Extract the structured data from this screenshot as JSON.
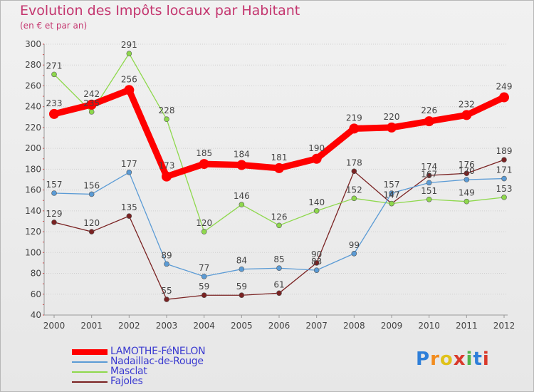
{
  "header": {
    "title": "Evolution des Impôts locaux par Habitant",
    "subtitle": "(en € et par an)"
  },
  "chart_data": {
    "type": "line",
    "title": "Evolution des Impôts locaux par Habitant",
    "subtitle": "(en € et par an)",
    "xlabel": "",
    "ylabel": "",
    "ylim": [
      40,
      300
    ],
    "yticks": [
      40,
      60,
      80,
      100,
      120,
      140,
      160,
      180,
      200,
      220,
      240,
      260,
      280,
      300
    ],
    "grid": true,
    "legend_position": "bottom-left",
    "categories": [
      "2000",
      "2001",
      "2002",
      "2003",
      "2004",
      "2005",
      "2006",
      "2007",
      "2008",
      "2009",
      "2010",
      "2011",
      "2012"
    ],
    "series": [
      {
        "name": "LAMOTHE-FéNELON",
        "color": "#ff0000",
        "values": [
          233,
          242,
          256,
          173,
          185,
          184,
          181,
          190,
          219,
          220,
          226,
          232,
          249
        ]
      },
      {
        "name": "Nadaillac-de-Rouge",
        "color": "#5b9bd5",
        "values": [
          157,
          156,
          177,
          89,
          77,
          84,
          85,
          83,
          99,
          157,
          167,
          170,
          171
        ]
      },
      {
        "name": "Masclat",
        "color": "#8ed84c",
        "values": [
          271,
          235,
          291,
          228,
          120,
          146,
          126,
          140,
          152,
          147,
          151,
          149,
          153
        ]
      },
      {
        "name": "Fajoles",
        "color": "#7a2222",
        "values": [
          129,
          120,
          135,
          55,
          59,
          59,
          61,
          90,
          178,
          147,
          174,
          176,
          189
        ]
      }
    ]
  },
  "brand": {
    "letters": [
      "P",
      "r",
      "o",
      "x",
      "i",
      "t",
      "i"
    ],
    "colors": [
      "#2e7fd9",
      "#f28c1e",
      "#e0c21a",
      "#d93a2b",
      "#4fb54a",
      "#2e7fd9",
      "#d93a2b"
    ]
  }
}
